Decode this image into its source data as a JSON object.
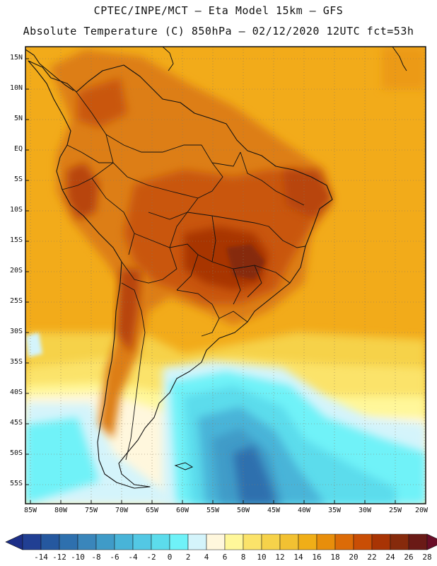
{
  "header": {
    "line1": "CPTEC/INPE/MCT –  Eta Model 15km – GFS",
    "line2": "Absolute Temperature (C) 850hPa – 02/12/2020 12UTC fct=53h"
  },
  "axes": {
    "lat_labels": [
      "15N",
      "10N",
      "5N",
      "EQ",
      "5S",
      "10S",
      "15S",
      "20S",
      "25S",
      "30S",
      "35S",
      "40S",
      "45S",
      "50S",
      "55S"
    ],
    "lon_labels": [
      "85W",
      "80W",
      "75W",
      "70W",
      "65W",
      "60W",
      "55W",
      "50W",
      "45W",
      "40W",
      "35W",
      "30W",
      "25W",
      "20W"
    ]
  },
  "colorbar": {
    "labels": [
      "-14",
      "-12",
      "-10",
      "-8",
      "-6",
      "-4",
      "-2",
      "0",
      "2",
      "4",
      "6",
      "8",
      "10",
      "12",
      "14",
      "16",
      "18",
      "20",
      "22",
      "24",
      "26",
      "28"
    ],
    "colors": [
      "#213f93",
      "#25589f",
      "#2e70ae",
      "#3a86bb",
      "#3f9bc8",
      "#48b4d8",
      "#53c8e4",
      "#5cdcec",
      "#6ff2f8",
      "#d4f4fb",
      "#fff7dd",
      "#fff79a",
      "#fbe36a",
      "#f6d24a",
      "#f2c132",
      "#f0ae17",
      "#e88e0b",
      "#dc6b07",
      "#c94e05",
      "#a83404",
      "#862a0c",
      "#6a1a16"
    ],
    "low_color": "#1d2f88",
    "high_color": "#6a0d27"
  },
  "palette": {
    "ocean_warm": "#f2ab1a",
    "land_hot": "#d87a14",
    "land_hotter": "#b24a0c",
    "land_hottest": "#8a2a0c",
    "cold_light": "#d4f4fb",
    "cold_mid": "#5cdcec",
    "cold_deep": "#3a86bb",
    "border_color": "#111111"
  }
}
